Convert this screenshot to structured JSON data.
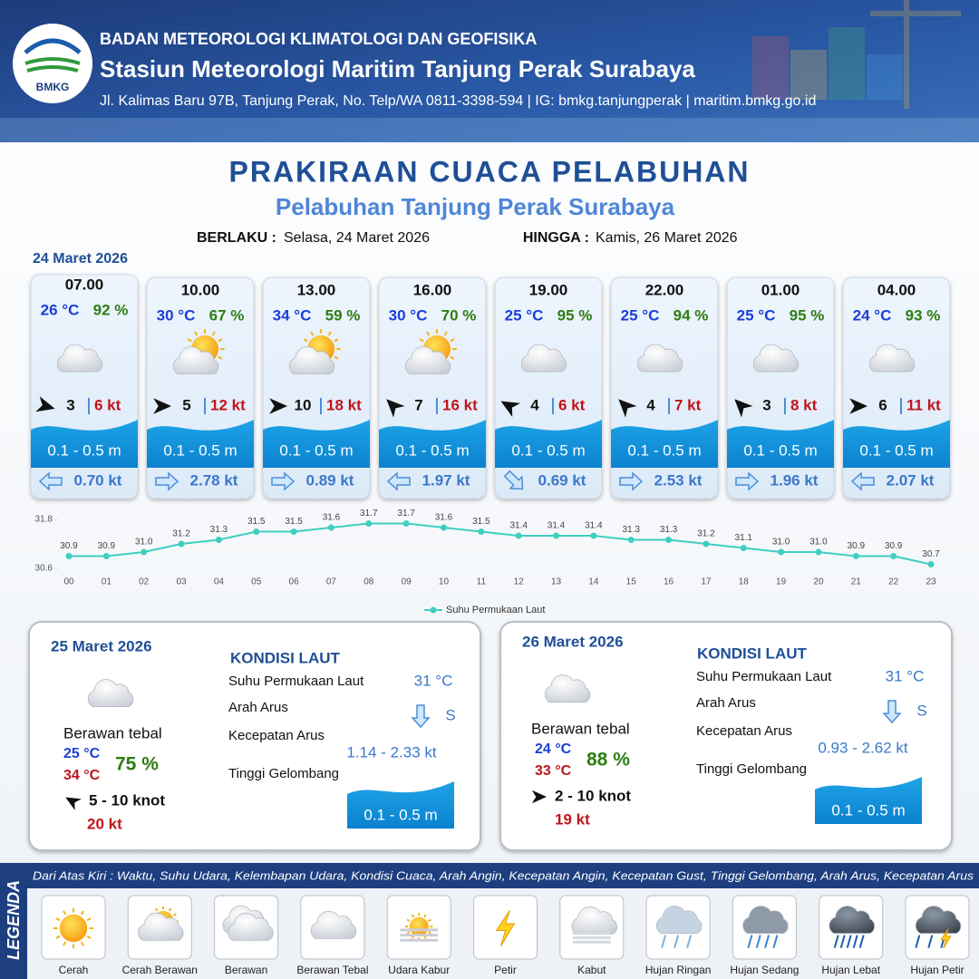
{
  "header": {
    "agency": "BADAN METEOROLOGI KLIMATOLOGI DAN GEOFISIKA",
    "station": "Stasiun Meteorologi Maritim Tanjung Perak Surabaya",
    "address": "Jl. Kalimas Baru 97B, Tanjung Perak, No. Telp/WA 0811-3398-594 | IG: bmkg.tanjungperak | maritim.bmkg.go.id",
    "logo_text": "BMKG"
  },
  "title": "PRAKIRAAN CUACA PELABUHAN",
  "subtitle": "Pelabuhan Tanjung Perak Surabaya",
  "validity": {
    "from_label": "BERLAKU :",
    "from": "Selasa, 24 Maret 2026",
    "to_label": "HINGGA :",
    "to": "Kamis, 26 Maret 2026"
  },
  "today": {
    "date": "24 Maret 2026",
    "forecasts": [
      {
        "time": "07.00",
        "temperature": "26 °C",
        "humidity": "92 %",
        "wind_speed": "3",
        "gust": "6 kt",
        "wave": "0.1 - 0.5 m",
        "current_speed": "0.70 kt"
      },
      {
        "time": "10.00",
        "temperature": "30 °C",
        "humidity": "67 %",
        "wind_speed": "5",
        "gust": "12 kt",
        "wave": "0.1 - 0.5 m",
        "current_speed": "2.78 kt"
      },
      {
        "time": "13.00",
        "temperature": "34 °C",
        "humidity": "59 %",
        "wind_speed": "10",
        "gust": "18 kt",
        "wave": "0.1 - 0.5 m",
        "current_speed": "0.89 kt"
      },
      {
        "time": "16.00",
        "temperature": "30 °C",
        "humidity": "70 %",
        "wind_speed": "7",
        "gust": "16 kt",
        "wave": "0.1 - 0.5 m",
        "current_speed": "1.97 kt"
      },
      {
        "time": "19.00",
        "temperature": "25 °C",
        "humidity": "95 %",
        "wind_speed": "4",
        "gust": "6 kt",
        "wave": "0.1 - 0.5 m",
        "current_speed": "0.69 kt"
      },
      {
        "time": "22.00",
        "temperature": "25 °C",
        "humidity": "94 %",
        "wind_speed": "4",
        "gust": "7 kt",
        "wave": "0.1 - 0.5 m",
        "current_speed": "2.53 kt"
      },
      {
        "time": "01.00",
        "temperature": "25 °C",
        "humidity": "95 %",
        "wind_speed": "3",
        "gust": "8 kt",
        "wave": "0.1 - 0.5 m",
        "current_speed": "1.96 kt"
      },
      {
        "time": "04.00",
        "temperature": "24 °C",
        "humidity": "93 %",
        "wind_speed": "6",
        "gust": "11 kt",
        "wave": "0.1 - 0.5 m",
        "current_speed": "2.07 kt"
      }
    ]
  },
  "chart_data": {
    "type": "line",
    "categories": [
      "00",
      "01",
      "02",
      "03",
      "04",
      "05",
      "06",
      "07",
      "08",
      "09",
      "10",
      "11",
      "12",
      "13",
      "14",
      "15",
      "16",
      "17",
      "18",
      "19",
      "20",
      "21",
      "22",
      "23"
    ],
    "series": [
      {
        "name": "Suhu Permukaan Laut",
        "color": "#3fcfbf",
        "values": [
          30.9,
          30.9,
          31.0,
          31.2,
          31.3,
          31.5,
          31.5,
          31.6,
          31.7,
          31.7,
          31.6,
          31.5,
          31.4,
          31.4,
          31.4,
          31.3,
          31.3,
          31.2,
          31.1,
          31.0,
          31.0,
          30.9,
          30.9,
          30.7
        ],
        "value_labels": [
          "30.9",
          "30.9",
          "31.0",
          "31.2",
          "31.3",
          "31.5",
          "31.5",
          "31.6",
          "31.7",
          "31.7",
          "31.6",
          "31.5",
          "31.4",
          "31.4",
          "31.4",
          "31.3",
          "31.3",
          "31.2",
          "31.1",
          "31.0",
          "31.0",
          "30.9",
          "30.9",
          "30.7"
        ]
      }
    ],
    "ylim": [
      30.6,
      31.8
    ],
    "yticks": [
      30.6,
      31.8
    ]
  },
  "days": [
    {
      "date": "25 Maret 2026",
      "condition": "Berawan tebal",
      "temp_min": "25 °C",
      "temp_max": "34 °C",
      "humidity": "75 %",
      "wind": "5 - 10 knot",
      "gust": "20 kt",
      "sea_heading": "KONDISI LAUT",
      "sea_labels": [
        "Suhu Permukaan Laut",
        "Arah Arus",
        "Kecepatan Arus",
        "Tinggi Gelombang"
      ],
      "sst": "31 °C",
      "current_direction": "S",
      "current_speed": "1.14 - 2.33 kt",
      "wave": "0.1 - 0.5 m"
    },
    {
      "date": "26 Maret 2026",
      "condition": "Berawan tebal",
      "temp_min": "24 °C",
      "temp_max": "33 °C",
      "humidity": "88 %",
      "wind": "2 - 10 knot",
      "gust": "19 kt",
      "sea_heading": "KONDISI LAUT",
      "sea_labels": [
        "Suhu Permukaan Laut",
        "Arah Arus",
        "Kecepatan Arus",
        "Tinggi Gelombang"
      ],
      "sst": "31 °C",
      "current_direction": "S",
      "current_speed": "0.93 - 2.62 kt",
      "wave": "0.1 - 0.5 m"
    }
  ],
  "legend": {
    "title": "LEGENDA",
    "description": "Dari Atas Kiri : Waktu, Suhu Udara, Kelembapan Udara, Kondisi Cuaca, Arah Angin, Kecepatan Angin, Kecepatan Gust, Tinggi Gelombang, Arah Arus, Kecepatan Arus",
    "items": [
      "Cerah",
      "Cerah Berawan",
      "Berawan",
      "Berawan Tebal",
      "Udara Kabur",
      "Petir",
      "Kabut",
      "Hujan Ringan",
      "Hujan Sedang",
      "Hujan Lebat",
      "Hujan Petir"
    ]
  }
}
